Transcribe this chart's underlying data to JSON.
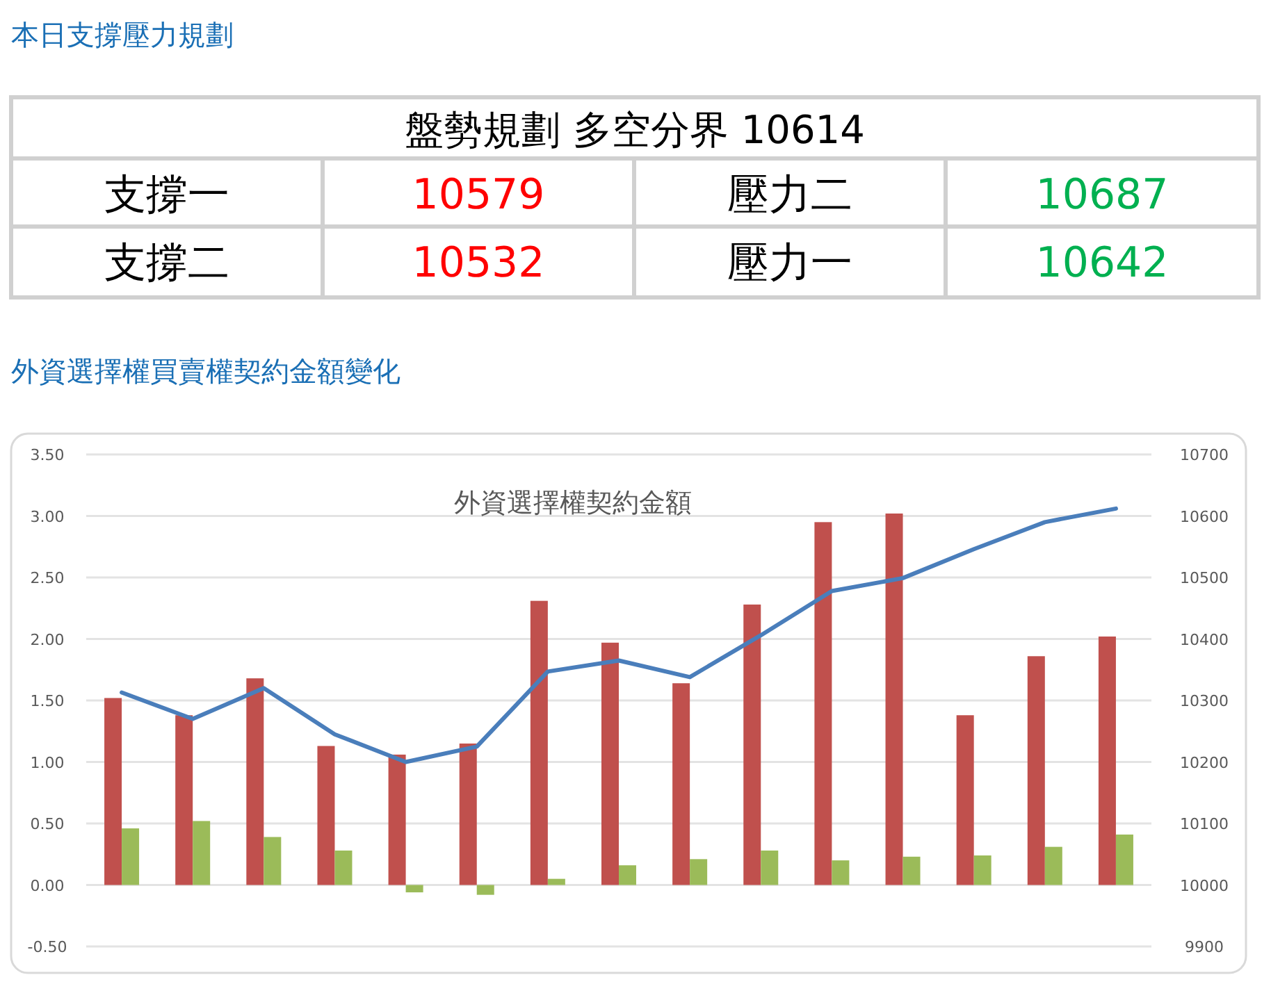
{
  "chart_data": [
    {
      "type": "other",
      "title": "本日支撐壓力規劃",
      "annotations": [
        "盤勢規劃 多空分界 10614",
        "支撐一",
        "10579",
        "壓力二",
        "10687",
        "支撐二",
        "10532",
        "壓力一",
        "10642"
      ]
    },
    {
      "type": "bar",
      "title": "外資選擇權買賣權契約金額變化",
      "subtitle": "外資選擇權契約金額",
      "categories": [
        null,
        null,
        null,
        null,
        null,
        null,
        null,
        null,
        null,
        null,
        null,
        null,
        null,
        null,
        null
      ],
      "series": [
        {
          "color": "#c0504d",
          "values": [
            1.52,
            1.38,
            1.68,
            1.13,
            1.06,
            1.15,
            2.31,
            1.97,
            1.64,
            2.28,
            2.95,
            3.02,
            1.38,
            1.86,
            2.02
          ]
        },
        {
          "color": "#9bbb59",
          "values": [
            0.46,
            0.52,
            0.39,
            0.28,
            -0.06,
            -0.08,
            0.05,
            0.16,
            0.21,
            0.28,
            0.2,
            0.23,
            0.24,
            0.31,
            0.41
          ]
        },
        {
          "type": "line",
          "axis": "y2",
          "color": "#4a7ebb",
          "values": [
            10313,
            10270,
            10320,
            10245,
            10200,
            10225,
            10347,
            10365,
            10338,
            10406,
            10478,
            10499,
            10546,
            10590,
            10612
          ]
        }
      ],
      "ylim": [
        -0.5,
        3.5
      ],
      "yticks": [
        {
          "value": -0.5,
          "label": "-0.50"
        },
        {
          "value": 0,
          "label": "0.00"
        },
        {
          "value": 0.5,
          "label": "0.50"
        },
        {
          "value": 1,
          "label": "1.00"
        },
        {
          "value": 1.5,
          "label": "1.50"
        },
        {
          "value": 2,
          "label": "2.00"
        },
        {
          "value": 2.5,
          "label": "2.50"
        },
        {
          "value": 3,
          "label": "3.00"
        },
        {
          "value": 3.5,
          "label": "3.50"
        }
      ],
      "y2lim": [
        9900,
        10700
      ],
      "y2ticks": [
        9900,
        10000,
        10100,
        10200,
        10300,
        10400,
        10500,
        10600,
        10700
      ],
      "grid": "y"
    }
  ]
}
